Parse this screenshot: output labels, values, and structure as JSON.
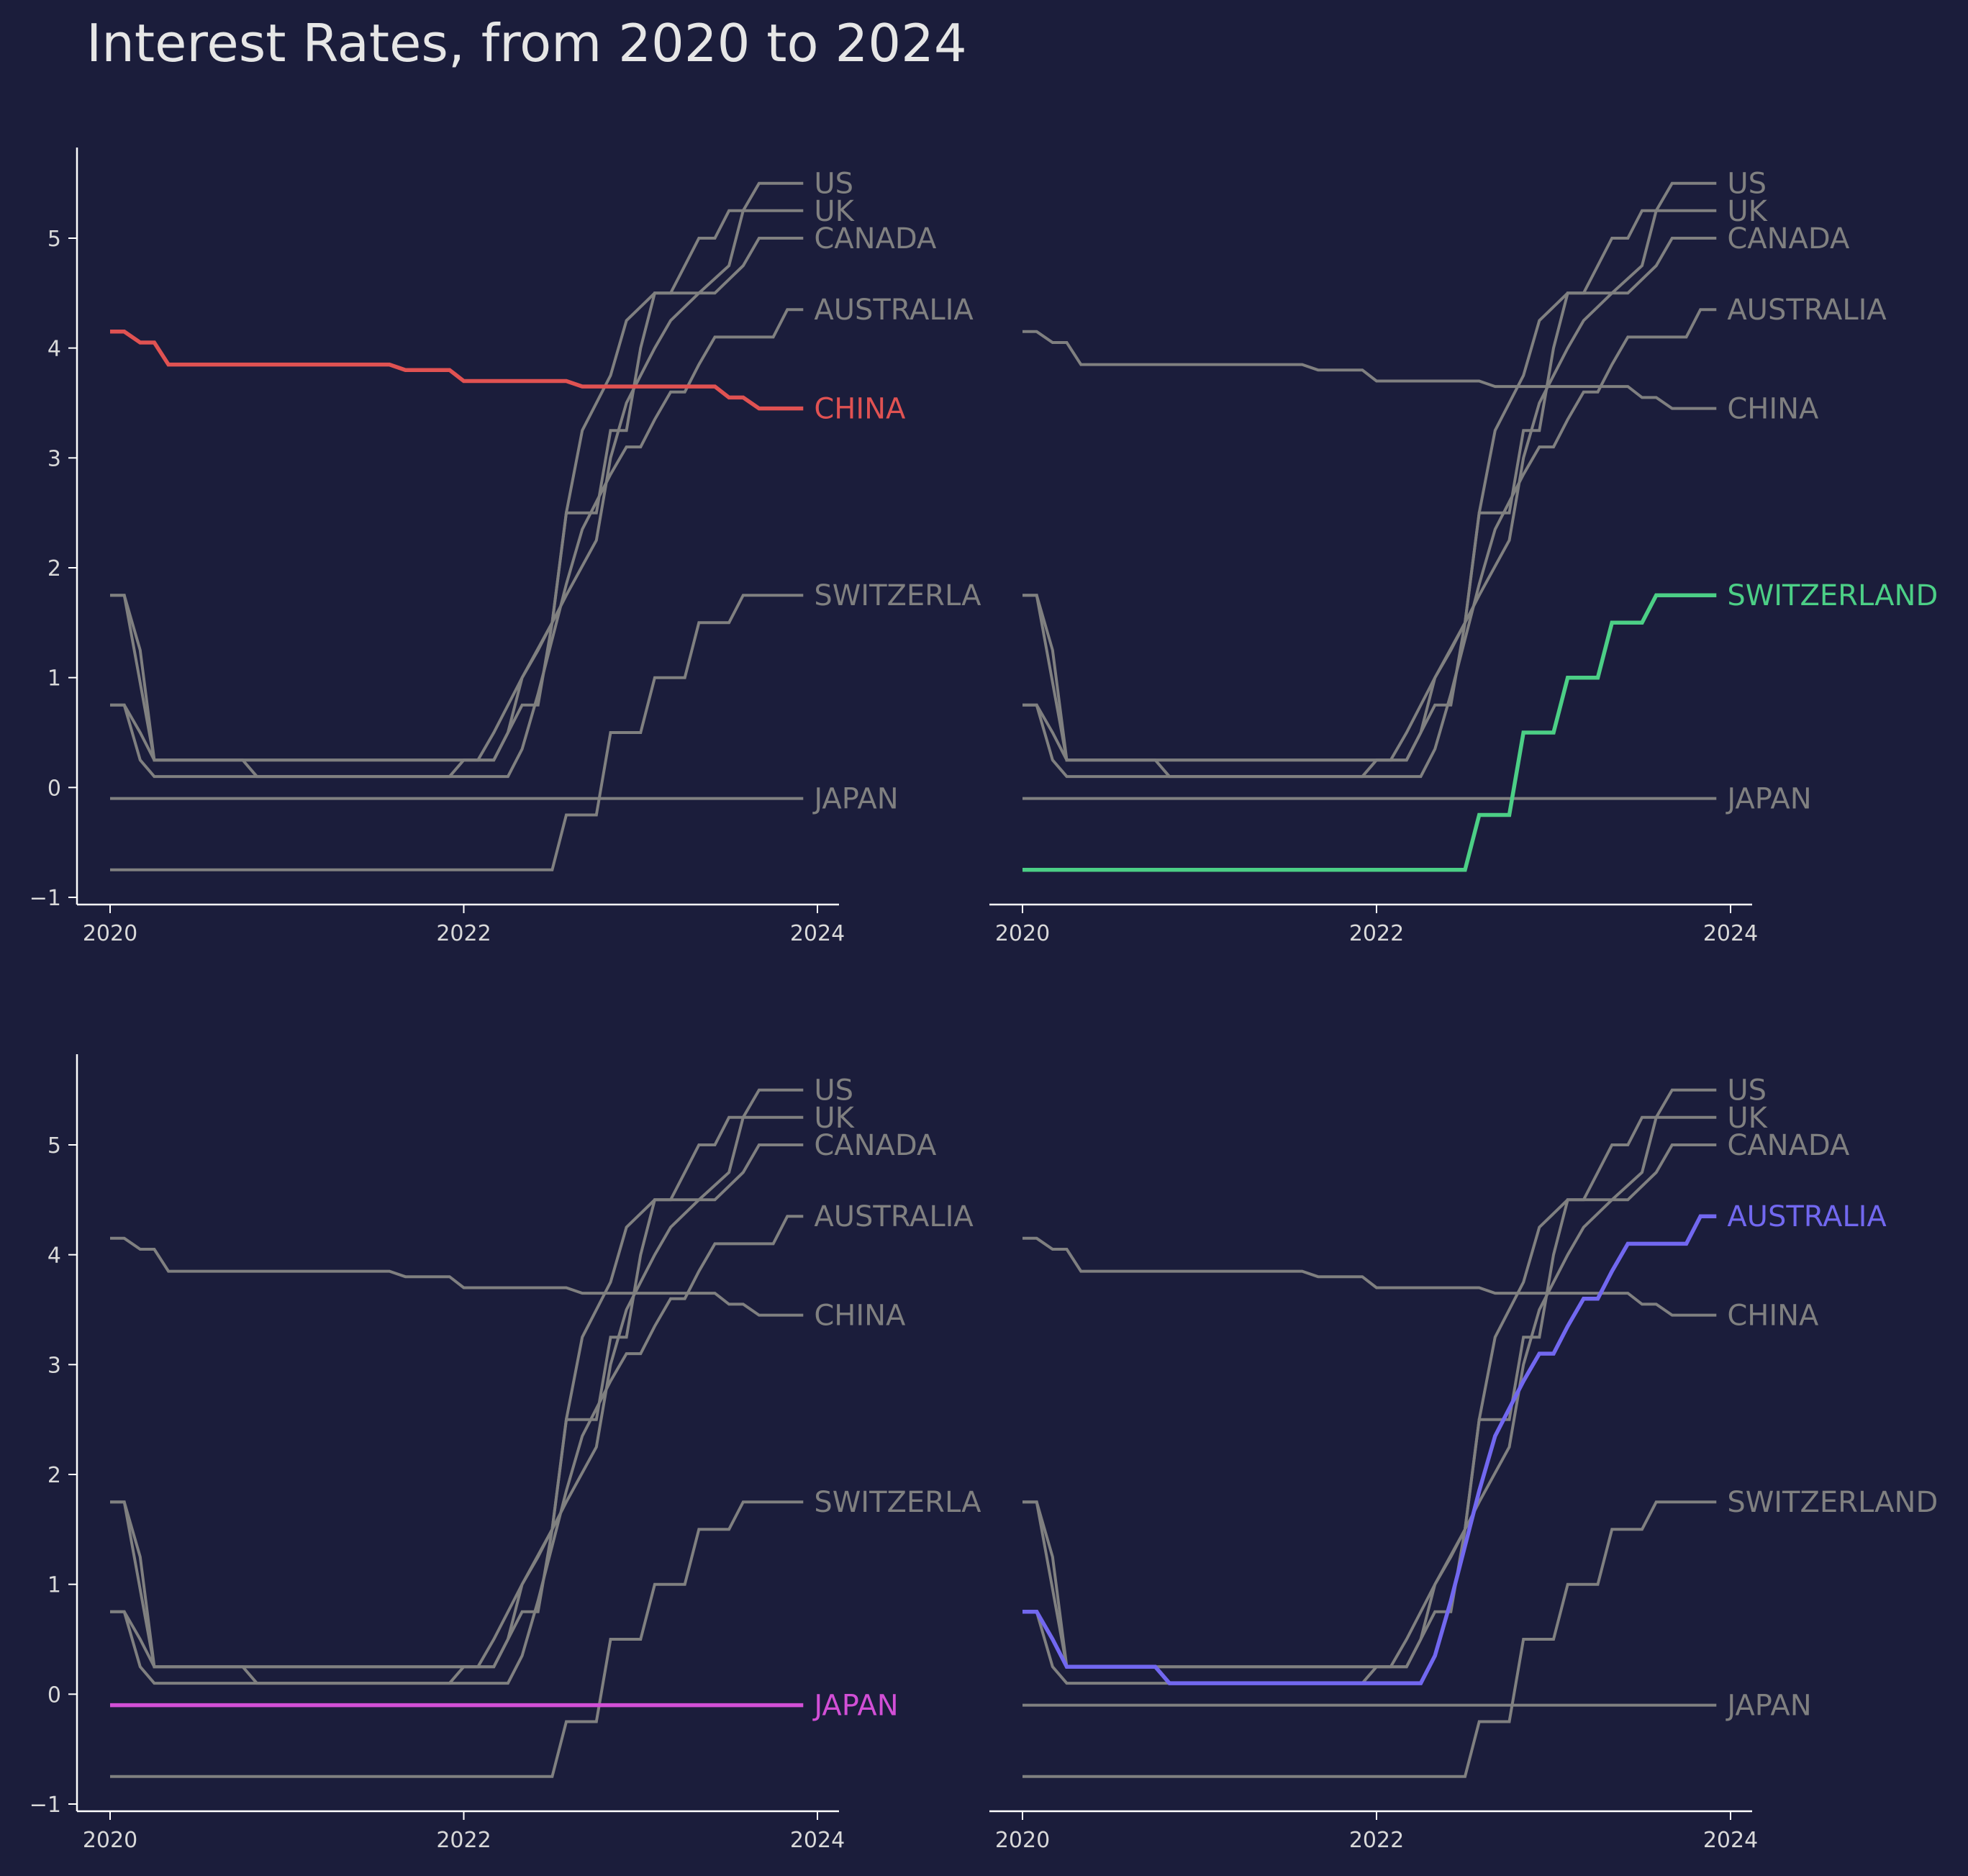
{
  "chart_data": {
    "type": "line",
    "title": "Interest Rates, from 2020 to 2024",
    "xlabel": "",
    "ylabel": "",
    "xlim": [
      2020.0,
      2024.0
    ],
    "ylim": [
      -1.0,
      5.8
    ],
    "xticks": [
      "2020",
      "2022",
      "2024"
    ],
    "yticks": [
      "−1",
      "0",
      "1",
      "2",
      "3",
      "4",
      "5"
    ],
    "grid": false,
    "legend": "none (series names printed at line ends)",
    "colors": {
      "background": "#1b1d3b",
      "axis": "#ffffff",
      "tick_label": "#d9d9d9",
      "muted_series": "#808080",
      "China": "#e05252",
      "Switzerland": "#4ccf86",
      "Japan": "#d24fd6",
      "Australia": "#7268f0"
    },
    "series": [
      {
        "name": "US",
        "label": "US",
        "points": [
          [
            2020.0,
            1.75
          ],
          [
            2020.08,
            1.75
          ],
          [
            2020.25,
            0.25
          ],
          [
            2022.17,
            0.25
          ],
          [
            2022.33,
            0.75
          ],
          [
            2022.42,
            0.75
          ],
          [
            2022.5,
            1.5
          ],
          [
            2022.58,
            2.5
          ],
          [
            2022.75,
            2.5
          ],
          [
            2022.83,
            3.25
          ],
          [
            2022.92,
            3.25
          ],
          [
            2023.0,
            4.0
          ],
          [
            2023.08,
            4.5
          ],
          [
            2023.17,
            4.5
          ],
          [
            2023.25,
            4.75
          ],
          [
            2023.33,
            5.0
          ],
          [
            2023.42,
            5.0
          ],
          [
            2023.5,
            5.25
          ],
          [
            2023.58,
            5.25
          ],
          [
            2023.67,
            5.5
          ],
          [
            2023.92,
            5.5
          ]
        ]
      },
      {
        "name": "UK",
        "label": "UK",
        "points": [
          [
            2020.0,
            0.75
          ],
          [
            2020.08,
            0.75
          ],
          [
            2020.17,
            0.25
          ],
          [
            2020.25,
            0.1
          ],
          [
            2021.92,
            0.1
          ],
          [
            2022.0,
            0.25
          ],
          [
            2022.08,
            0.25
          ],
          [
            2022.17,
            0.5
          ],
          [
            2022.33,
            1.0
          ],
          [
            2022.42,
            1.25
          ],
          [
            2022.58,
            1.75
          ],
          [
            2022.75,
            2.25
          ],
          [
            2022.83,
            3.0
          ],
          [
            2022.92,
            3.5
          ],
          [
            2023.08,
            4.0
          ],
          [
            2023.17,
            4.25
          ],
          [
            2023.33,
            4.5
          ],
          [
            2023.5,
            4.75
          ],
          [
            2023.58,
            5.25
          ],
          [
            2023.92,
            5.25
          ]
        ]
      },
      {
        "name": "CANADA",
        "label": "CANADA",
        "points": [
          [
            2020.0,
            1.75
          ],
          [
            2020.08,
            1.75
          ],
          [
            2020.17,
            1.25
          ],
          [
            2020.25,
            0.25
          ],
          [
            2022.17,
            0.25
          ],
          [
            2022.25,
            0.5
          ],
          [
            2022.33,
            1.0
          ],
          [
            2022.5,
            1.5
          ],
          [
            2022.58,
            2.5
          ],
          [
            2022.67,
            3.25
          ],
          [
            2022.83,
            3.75
          ],
          [
            2022.92,
            4.25
          ],
          [
            2023.08,
            4.5
          ],
          [
            2023.42,
            4.5
          ],
          [
            2023.58,
            4.75
          ],
          [
            2023.67,
            5.0
          ],
          [
            2023.92,
            5.0
          ]
        ]
      },
      {
        "name": "AUSTRALIA",
        "label": "AUSTRALIA",
        "points": [
          [
            2020.0,
            0.75
          ],
          [
            2020.08,
            0.75
          ],
          [
            2020.17,
            0.5
          ],
          [
            2020.25,
            0.25
          ],
          [
            2020.75,
            0.25
          ],
          [
            2020.83,
            0.1
          ],
          [
            2022.25,
            0.1
          ],
          [
            2022.33,
            0.35
          ],
          [
            2022.42,
            0.85
          ],
          [
            2022.5,
            1.35
          ],
          [
            2022.58,
            1.85
          ],
          [
            2022.67,
            2.35
          ],
          [
            2022.75,
            2.6
          ],
          [
            2022.83,
            2.85
          ],
          [
            2022.92,
            3.1
          ],
          [
            2023.0,
            3.1
          ],
          [
            2023.08,
            3.35
          ],
          [
            2023.17,
            3.6
          ],
          [
            2023.25,
            3.6
          ],
          [
            2023.33,
            3.85
          ],
          [
            2023.42,
            4.1
          ],
          [
            2023.75,
            4.1
          ],
          [
            2023.83,
            4.35
          ],
          [
            2023.92,
            4.35
          ]
        ]
      },
      {
        "name": "CHINA",
        "label": "CHINA",
        "points": [
          [
            2020.0,
            4.15
          ],
          [
            2020.08,
            4.15
          ],
          [
            2020.17,
            4.05
          ],
          [
            2020.25,
            4.05
          ],
          [
            2020.33,
            3.85
          ],
          [
            2021.58,
            3.85
          ],
          [
            2021.67,
            3.8
          ],
          [
            2021.92,
            3.8
          ],
          [
            2022.0,
            3.7
          ],
          [
            2022.58,
            3.7
          ],
          [
            2022.67,
            3.65
          ],
          [
            2023.42,
            3.65
          ],
          [
            2023.5,
            3.55
          ],
          [
            2023.58,
            3.55
          ],
          [
            2023.67,
            3.45
          ],
          [
            2023.92,
            3.45
          ]
        ]
      },
      {
        "name": "SWITZERLAND",
        "label": "SWITZERLAND",
        "points": [
          [
            2020.0,
            -0.75
          ],
          [
            2022.5,
            -0.75
          ],
          [
            2022.58,
            -0.25
          ],
          [
            2022.75,
            -0.25
          ],
          [
            2022.83,
            0.5
          ],
          [
            2023.0,
            0.5
          ],
          [
            2023.08,
            1.0
          ],
          [
            2023.25,
            1.0
          ],
          [
            2023.33,
            1.5
          ],
          [
            2023.5,
            1.5
          ],
          [
            2023.58,
            1.75
          ],
          [
            2023.92,
            1.75
          ]
        ]
      },
      {
        "name": "JAPAN",
        "label": "JAPAN",
        "points": [
          [
            2020.0,
            -0.1
          ],
          [
            2023.92,
            -0.1
          ]
        ]
      }
    ],
    "panels": [
      {
        "highlight": "CHINA",
        "truncated_labels": {
          "SWITZERLAND": "SWITZERLA"
        }
      },
      {
        "highlight": "SWITZERLAND",
        "truncated_labels": {}
      },
      {
        "highlight": "JAPAN",
        "truncated_labels": {
          "SWITZERLAND": "SWITZERLA"
        }
      },
      {
        "highlight": "AUSTRALIA",
        "truncated_labels": {}
      }
    ]
  }
}
